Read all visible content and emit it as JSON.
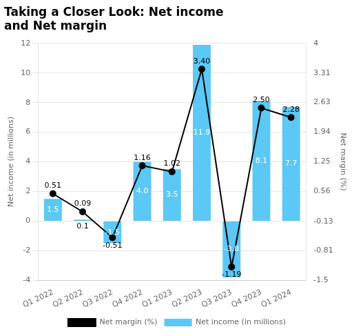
{
  "chart_data": {
    "type": "bar",
    "title": [
      "Taking a Closer Look: Net income",
      "and Net margin"
    ],
    "categories": [
      "Q1 2022",
      "Q2 2022",
      "Q3 2022",
      "Q4 2022",
      "Q1 2023",
      "Q2 2023",
      "Q3 2023",
      "Q4 2023",
      "Q1 2024"
    ],
    "series": [
      {
        "name": "Net income (in millions)",
        "type": "bar",
        "color": "#5BC8F5",
        "values": [
          1.5,
          0.1,
          -1.5,
          4.0,
          3.5,
          11.9,
          -3.8,
          8.1,
          7.7
        ],
        "value_labels": [
          "1.5",
          "0.1",
          "-1.5",
          "4.0",
          "3.5",
          "11.9",
          "-3.8",
          "8.1",
          "7.7"
        ]
      },
      {
        "name": "Net margin (%)",
        "type": "line",
        "color": "#000000",
        "marker": "circle",
        "axis": "y2",
        "values": [
          0.51,
          0.09,
          -0.51,
          1.16,
          1.02,
          3.4,
          -1.19,
          2.5,
          2.28
        ],
        "value_labels": [
          "0.51",
          "0.09",
          "-0.51",
          "1.16",
          "1.02",
          "3.40",
          "-1.19",
          "2.50",
          "2.28"
        ]
      }
    ],
    "ylabel": "Net income (in millions)",
    "y2label": "Net margin (%)",
    "ylim": [
      -4,
      12
    ],
    "yticks": [
      -4,
      -2,
      0,
      2,
      4,
      6,
      8,
      10,
      12
    ],
    "y2lim": [
      -1.5,
      4.0
    ],
    "y2ticks": [
      -1.5,
      -0.81,
      -0.13,
      0.56,
      1.25,
      1.94,
      2.63,
      3.31,
      4.0
    ],
    "grid": true,
    "legend": "bottom",
    "data_labels": true
  }
}
